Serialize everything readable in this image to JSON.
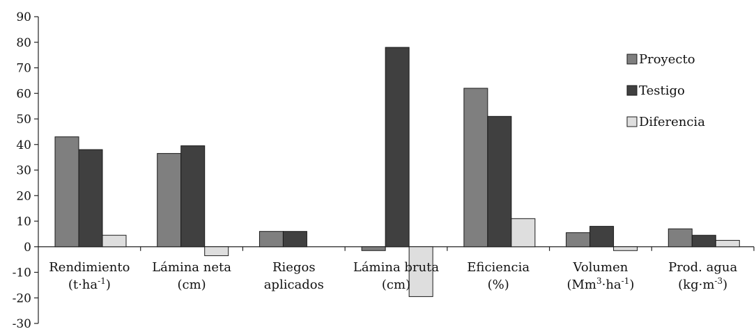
{
  "chart_data": {
    "type": "bar",
    "title": "",
    "xlabel": "",
    "ylabel": "",
    "ylim": [
      -30,
      90
    ],
    "yticks": [
      90,
      80,
      70,
      60,
      50,
      40,
      30,
      20,
      10,
      0,
      -10,
      -20,
      -30
    ],
    "ytick_labels": [
      "90",
      "80",
      "70",
      "60",
      "50",
      "40",
      "30",
      "20",
      "10",
      "0",
      "-10",
      "-20",
      "-30"
    ],
    "grid": false,
    "legend_position": "right",
    "categories": [
      {
        "line1": "Rendimiento",
        "line2": "(t·ha",
        "sup": "-1",
        "tail": ")"
      },
      {
        "line1": "Lámina neta",
        "line2": "(cm)",
        "sup": "",
        "tail": ""
      },
      {
        "line1": "Riegos",
        "line2": "aplicados",
        "sup": "",
        "tail": ""
      },
      {
        "line1": "Lámina bruta",
        "line2": "(cm)",
        "sup": "",
        "tail": ""
      },
      {
        "line1": "Eficiencia",
        "line2": "(%)",
        "sup": "",
        "tail": ""
      },
      {
        "line1": "Volumen",
        "line2": "(Mm",
        "sup": "3",
        "tail": "·ha",
        "sup2": "-1",
        "tail2": ")"
      },
      {
        "line1": "Prod. agua",
        "line2": "(kg·m",
        "sup": "-3",
        "tail": ")"
      }
    ],
    "series": [
      {
        "name": "Proyecto",
        "color": "#7f7f7f",
        "values": [
          43,
          36.5,
          6,
          -1.5,
          62,
          5.5,
          7
        ]
      },
      {
        "name": "Testigo",
        "color": "#404040",
        "values": [
          38,
          39.5,
          6,
          78,
          51,
          8,
          4.5
        ]
      },
      {
        "name": "Diferencia",
        "color": "#dedede",
        "values": [
          4.5,
          -3.5,
          0,
          -19.5,
          11,
          -1.5,
          2.5
        ]
      }
    ]
  }
}
